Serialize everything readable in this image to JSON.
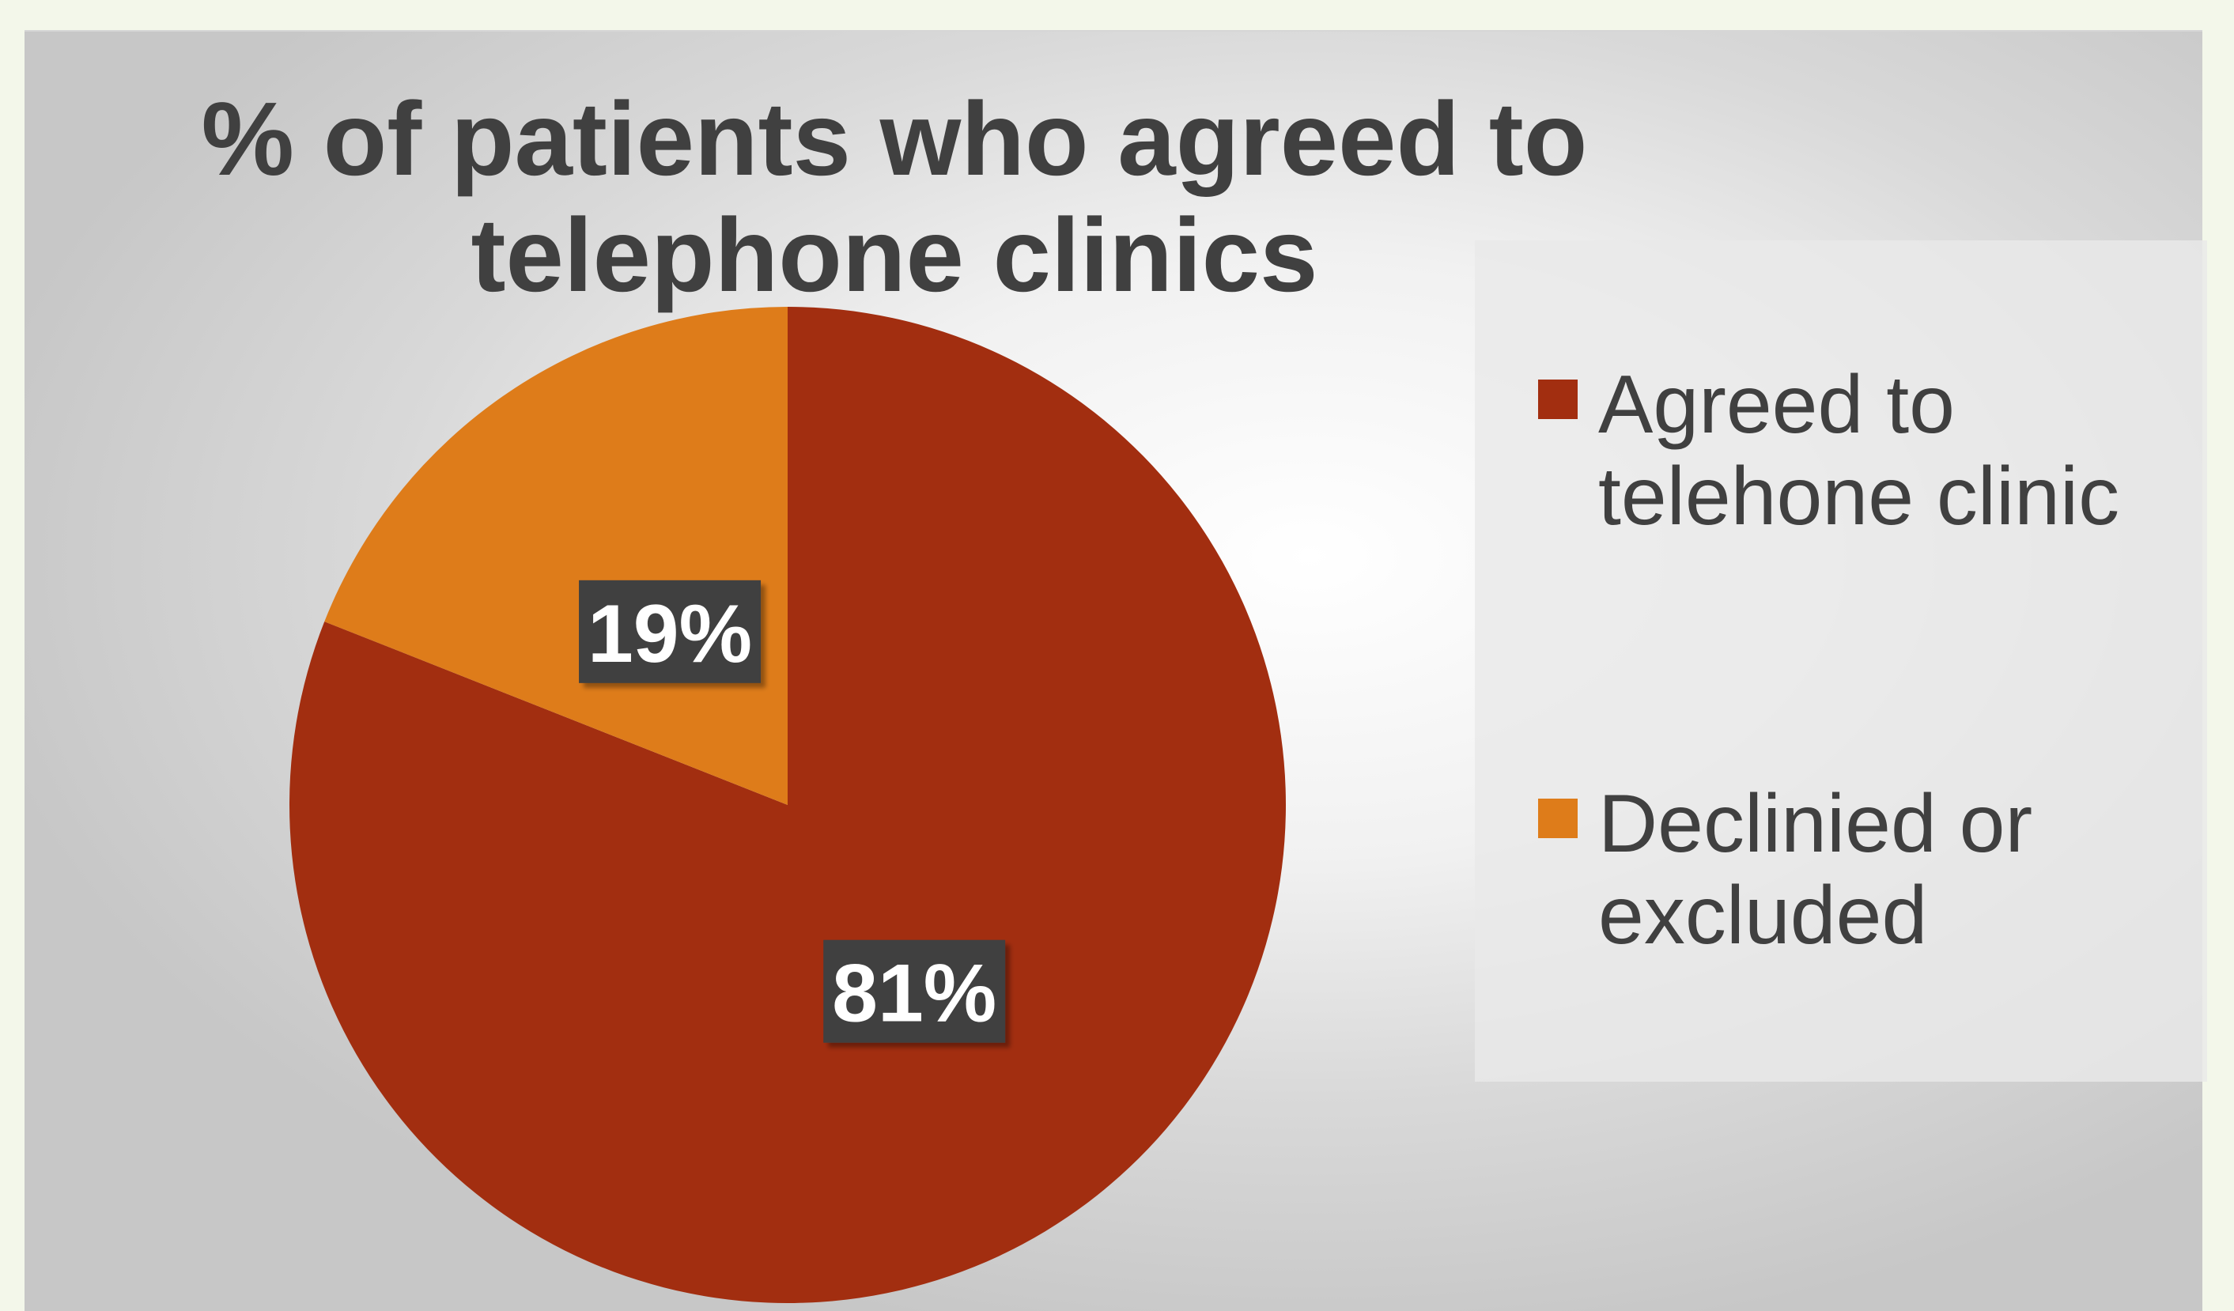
{
  "chart_data": {
    "type": "pie",
    "title": "% of patients who agreed to telephone clinics",
    "categories": [
      "Agreed to telehone clinic",
      "Declinied or excluded"
    ],
    "values": [
      81,
      19
    ],
    "data_labels": [
      "81%",
      "19%"
    ],
    "colors": [
      "#a22e10",
      "#de7c1a"
    ],
    "legend_position": "right",
    "start_angle_deg": 0,
    "direction": "clockwise"
  },
  "style": {
    "label_background": "#404040",
    "label_text_color": "#ffffff"
  }
}
